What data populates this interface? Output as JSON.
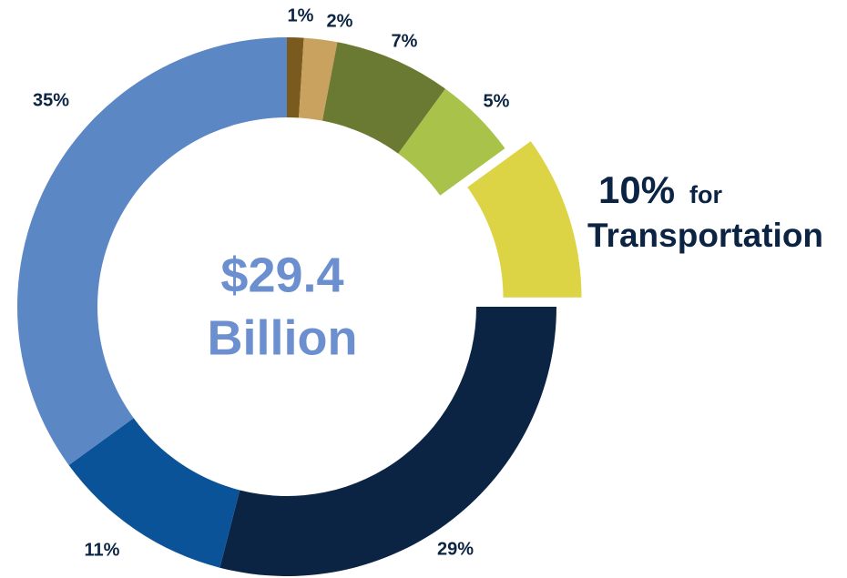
{
  "chart_data": {
    "type": "donut",
    "values": [
      1,
      2,
      7,
      5,
      10,
      29,
      11,
      35
    ],
    "value_labels": [
      "1%",
      "2%",
      "7%",
      "5%",
      "10%",
      "29%",
      "11%",
      "35%"
    ],
    "colors": [
      "#7a5a1e",
      "#c8a25e",
      "#6b7a32",
      "#a8c24a",
      "#dcd444",
      "#0c2444",
      "#0b5398",
      "#5b87c5"
    ],
    "exploded": 4,
    "center_text": [
      "$29.4",
      "Billion"
    ],
    "annotations": [
      "for",
      "Transportation"
    ]
  }
}
